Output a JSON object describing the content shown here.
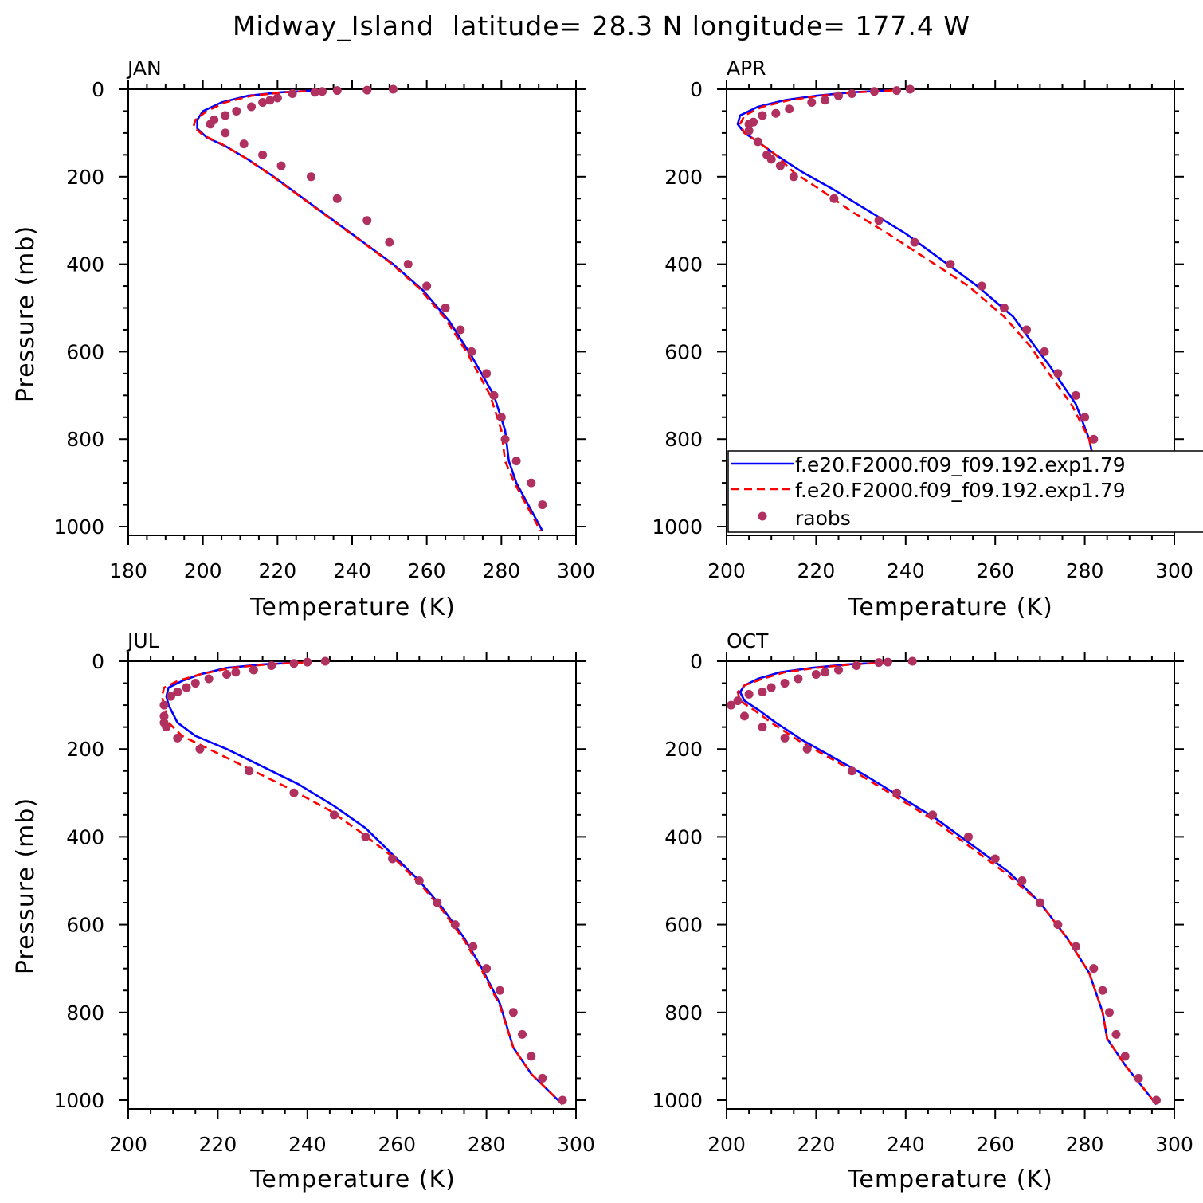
{
  "figure": {
    "title": "Midway_Island  latitude= 28.3 N longitude= 177.4 W"
  },
  "colors": {
    "model1": "#0000ff",
    "model2": "#ff0000",
    "obs": "#b03060",
    "axes": "#000000"
  },
  "legend": {
    "location": "lower-right of APR panel",
    "entries": [
      {
        "label": "f.e20.F2000.f09_f09.192.exp1.79",
        "style": "solid blue line"
      },
      {
        "label": "f.e20.F2000.f09_f09.192.exp1.79",
        "style": "dashed red line"
      },
      {
        "label": "raobs",
        "style": "filled purple dots"
      }
    ]
  },
  "chart_data": [
    {
      "type": "line",
      "panel": "JAN",
      "title": "JAN",
      "xlabel": "Temperature (K)",
      "ylabel": "Pressure (mb)",
      "xlim": [
        180,
        300
      ],
      "ylim": [
        1020,
        0
      ],
      "xticks": [
        "180",
        "200",
        "220",
        "240",
        "260",
        "280",
        "300"
      ],
      "yticks": [
        "0",
        "200",
        "400",
        "600",
        "800",
        "1000"
      ],
      "series": [
        {
          "name": "f.e20.F2000.f09_f09.192.exp1.79",
          "style": "solid",
          "color": "#0000ff",
          "x": [
            230,
            221,
            212,
            205,
            200,
            198.5,
            198.5,
            201,
            206,
            212,
            219,
            227,
            235,
            243,
            251,
            259,
            266,
            272,
            278,
            281,
            282,
            284,
            291
          ],
          "y": [
            3,
            7,
            15,
            30,
            50,
            70,
            90,
            110,
            130,
            160,
            200,
            250,
            300,
            350,
            400,
            460,
            530,
            610,
            700,
            780,
            850,
            900,
            1010
          ]
        },
        {
          "name": "f.e20.F2000.f09_f09.192.exp1.79",
          "style": "dashed",
          "color": "#ff0000",
          "x": [
            231,
            222,
            213,
            206,
            201,
            198,
            197.5,
            200,
            205,
            211,
            218,
            226,
            234,
            242,
            250,
            258,
            265,
            271,
            277,
            280,
            281,
            283.5,
            290.5
          ],
          "y": [
            3,
            7,
            15,
            30,
            50,
            70,
            85,
            105,
            125,
            155,
            195,
            245,
            295,
            345,
            395,
            455,
            525,
            605,
            700,
            780,
            850,
            900,
            1010
          ]
        },
        {
          "name": "raobs",
          "style": "points",
          "color": "#b03060",
          "x": [
            251,
            244,
            236,
            232,
            230,
            224,
            220,
            218,
            216,
            213,
            209,
            206,
            203,
            202,
            206,
            211,
            216,
            221,
            229,
            236,
            244,
            250,
            255,
            260,
            265,
            269,
            272,
            276,
            278,
            280,
            281,
            284,
            288,
            291
          ],
          "y": [
            0,
            2,
            3,
            5,
            7,
            10,
            20,
            25,
            30,
            40,
            50,
            60,
            70,
            80,
            100,
            125,
            150,
            175,
            200,
            250,
            300,
            350,
            400,
            450,
            500,
            550,
            600,
            650,
            700,
            750,
            800,
            850,
            900,
            950
          ]
        }
      ]
    },
    {
      "type": "line",
      "panel": "APR",
      "title": "APR",
      "xlabel": "Temperature (K)",
      "ylabel": "",
      "xlim": [
        200,
        300
      ],
      "ylim": [
        1020,
        0
      ],
      "xticks": [
        "200",
        "220",
        "240",
        "260",
        "280",
        "300"
      ],
      "yticks": [
        "0",
        "200",
        "400",
        "600",
        "800",
        "1000"
      ],
      "series": [
        {
          "name": "f.e20.F2000.f09_f09.192.exp1.79",
          "style": "solid",
          "color": "#0000ff",
          "x": [
            236,
            228,
            220,
            213,
            207,
            203,
            202.5,
            204,
            207,
            211,
            217,
            224,
            232,
            240,
            248,
            256,
            264,
            269,
            272,
            278,
            281,
            283,
            291
          ],
          "y": [
            3,
            7,
            15,
            25,
            40,
            60,
            80,
            100,
            120,
            150,
            190,
            230,
            280,
            330,
            390,
            450,
            520,
            590,
            630,
            720,
            800,
            900,
            1010
          ]
        },
        {
          "name": "f.e20.F2000.f09_f09.192.exp1.79",
          "style": "dashed",
          "color": "#ff0000",
          "x": [
            237,
            229,
            221,
            214,
            208,
            204,
            203,
            204,
            207,
            211,
            215,
            221,
            228,
            236,
            245,
            254,
            262,
            268,
            272,
            277,
            281,
            283,
            290.5
          ],
          "y": [
            3,
            7,
            15,
            25,
            40,
            60,
            80,
            100,
            120,
            150,
            190,
            230,
            280,
            330,
            390,
            450,
            520,
            590,
            650,
            720,
            800,
            900,
            1010
          ]
        },
        {
          "name": "raobs",
          "style": "points",
          "color": "#b03060",
          "x": [
            241,
            238,
            233,
            228,
            225,
            222,
            219,
            214,
            211,
            208,
            206,
            205,
            205,
            207,
            209,
            210,
            212,
            215,
            224,
            234,
            242,
            250,
            257,
            262,
            267,
            271,
            274,
            278,
            280,
            282,
            284,
            285,
            288,
            291
          ],
          "y": [
            0,
            3,
            5,
            10,
            15,
            25,
            30,
            45,
            55,
            60,
            75,
            95,
            80,
            120,
            150,
            160,
            175,
            200,
            250,
            300,
            350,
            400,
            450,
            500,
            550,
            600,
            650,
            700,
            750,
            800,
            850,
            900,
            950,
            1000
          ]
        }
      ]
    },
    {
      "type": "line",
      "panel": "JUL",
      "title": "JUL",
      "xlabel": "Temperature (K)",
      "ylabel": "Pressure (mb)",
      "xlim": [
        200,
        300
      ],
      "ylim": [
        1020,
        0
      ],
      "xticks": [
        "200",
        "220",
        "240",
        "260",
        "280",
        "300"
      ],
      "yticks": [
        "0",
        "200",
        "400",
        "600",
        "800",
        "1000"
      ],
      "series": [
        {
          "name": "f.e20.F2000.f09_f09.192.exp1.79",
          "style": "solid",
          "color": "#0000ff",
          "x": [
            238,
            230,
            222,
            216,
            212,
            209,
            208.5,
            209,
            211,
            215,
            222,
            230,
            238,
            246,
            253,
            259,
            265,
            270,
            275,
            279,
            283,
            286,
            290,
            297
          ],
          "y": [
            3,
            7,
            15,
            30,
            45,
            60,
            80,
            100,
            140,
            170,
            200,
            240,
            280,
            330,
            380,
            440,
            500,
            560,
            630,
            700,
            780,
            880,
            940,
            1010
          ]
        },
        {
          "name": "f.e20.F2000.f09_f09.192.exp1.79",
          "style": "dashed",
          "color": "#ff0000",
          "x": [
            239,
            231,
            223,
            216,
            211,
            208,
            207.5,
            208,
            209,
            212,
            218,
            227,
            236,
            245,
            252,
            259,
            265,
            270,
            275,
            279,
            283,
            286,
            290,
            297
          ],
          "y": [
            3,
            7,
            15,
            30,
            45,
            60,
            80,
            100,
            140,
            170,
            200,
            245,
            290,
            340,
            390,
            445,
            505,
            565,
            635,
            705,
            785,
            880,
            940,
            1010
          ]
        },
        {
          "name": "raobs",
          "style": "points",
          "color": "#b03060",
          "x": [
            244,
            240,
            237,
            232,
            228,
            224,
            222,
            218,
            215,
            213,
            211,
            209.5,
            208,
            208,
            208,
            208.5,
            211,
            216,
            227,
            237,
            246,
            253,
            259,
            265,
            269,
            273,
            277,
            280,
            283,
            286,
            288,
            290,
            292.5,
            297
          ],
          "y": [
            0,
            2,
            5,
            10,
            20,
            25,
            30,
            40,
            50,
            60,
            70,
            80,
            100,
            125,
            140,
            150,
            175,
            200,
            250,
            300,
            350,
            400,
            450,
            500,
            550,
            600,
            650,
            700,
            750,
            800,
            850,
            900,
            950,
            1000
          ]
        }
      ]
    },
    {
      "type": "line",
      "panel": "OCT",
      "title": "OCT",
      "xlabel": "Temperature (K)",
      "ylabel": "",
      "xlim": [
        200,
        300
      ],
      "ylim": [
        1020,
        0
      ],
      "xticks": [
        "200",
        "220",
        "240",
        "260",
        "280",
        "300"
      ],
      "yticks": [
        "0",
        "200",
        "400",
        "600",
        "800",
        "1000"
      ],
      "series": [
        {
          "name": "f.e20.F2000.f09_f09.192.exp1.79",
          "style": "solid",
          "color": "#0000ff",
          "x": [
            235,
            227,
            219,
            212,
            207,
            204,
            203,
            204,
            207,
            211,
            217,
            224,
            231,
            239,
            247,
            255,
            263,
            270,
            276,
            281,
            284,
            285,
            289,
            296
          ],
          "y": [
            3,
            7,
            15,
            25,
            40,
            55,
            70,
            90,
            110,
            140,
            180,
            220,
            260,
            310,
            360,
            420,
            480,
            550,
            630,
            710,
            800,
            860,
            920,
            1010
          ]
        },
        {
          "name": "f.e20.F2000.f09_f09.192.exp1.79",
          "style": "dashed",
          "color": "#ff0000",
          "x": [
            236,
            228,
            220,
            213,
            208,
            204,
            202.5,
            203,
            206,
            210,
            216,
            223,
            230,
            238,
            246,
            254,
            262,
            270,
            276,
            281,
            284,
            285,
            289,
            296
          ],
          "y": [
            3,
            7,
            15,
            25,
            40,
            55,
            70,
            90,
            110,
            140,
            180,
            220,
            260,
            310,
            360,
            420,
            480,
            550,
            630,
            710,
            800,
            860,
            920,
            1010
          ]
        },
        {
          "name": "raobs",
          "style": "points",
          "color": "#b03060",
          "x": [
            241.5,
            236,
            234,
            229,
            225,
            222,
            220,
            216,
            213,
            210,
            208,
            205,
            202.5,
            201,
            204,
            208,
            213,
            218,
            228,
            238,
            246,
            254,
            260,
            266,
            270,
            274,
            278,
            282,
            284,
            285.5,
            287,
            289,
            292,
            296
          ],
          "y": [
            0,
            2,
            3,
            10,
            20,
            25,
            30,
            40,
            50,
            60,
            70,
            75,
            90,
            100,
            125,
            150,
            175,
            200,
            250,
            300,
            350,
            400,
            450,
            500,
            550,
            600,
            650,
            700,
            750,
            800,
            850,
            900,
            950,
            1000
          ]
        }
      ]
    }
  ]
}
